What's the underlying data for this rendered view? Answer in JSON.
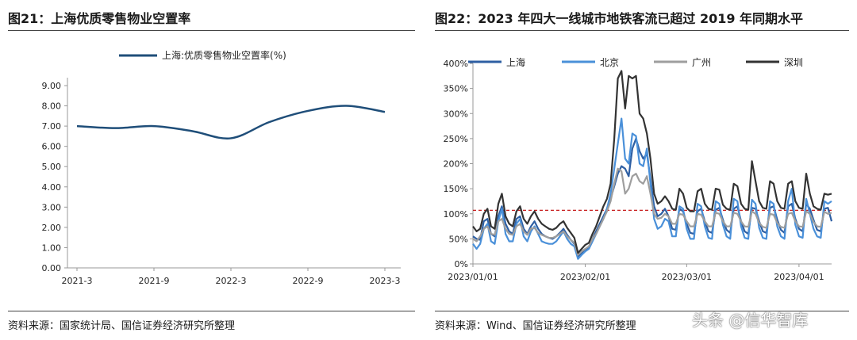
{
  "left": {
    "title": "图21：上海优质零售物业空置率",
    "source": "资料来源：国家统计局、国信证券经济研究所整理"
  },
  "right": {
    "title": "图22：2023 年四大一线城市地铁客流已超过 2019 年同期水平",
    "source": "资料来源：Wind、国信证券经济研究所整理"
  },
  "watermark": "头条 @信华智库",
  "chart_data": [
    {
      "type": "line",
      "title": "",
      "xlabel": "",
      "ylabel": "",
      "x_ticks": [
        "2021-3",
        "2021-9",
        "2022-3",
        "2022-9",
        "2023-3"
      ],
      "y_ticks": [
        "0.00",
        "1.00",
        "2.00",
        "3.00",
        "4.00",
        "5.00",
        "6.00",
        "7.00",
        "8.00",
        "9.00"
      ],
      "ylim": [
        0,
        9
      ],
      "grid": false,
      "legend_position": "top",
      "series": [
        {
          "name": "上海:优质零售物业空置率(%)",
          "color": "#1f4e79",
          "x": [
            "2021-3",
            "2021-6",
            "2021-9",
            "2021-12",
            "2022-3",
            "2022-6",
            "2022-9",
            "2022-12",
            "2023-3"
          ],
          "values": [
            7.0,
            6.9,
            7.0,
            6.75,
            6.4,
            7.2,
            7.75,
            8.0,
            7.7
          ]
        }
      ]
    },
    {
      "type": "line",
      "title": "",
      "xlabel": "",
      "ylabel": "",
      "x_ticks": [
        "2023/01/01",
        "2023/02/01",
        "2023/03/01",
        "2023/04/01"
      ],
      "y_ticks": [
        "0%",
        "50%",
        "100%",
        "150%",
        "200%",
        "250%",
        "300%",
        "350%",
        "400%"
      ],
      "ylim": [
        0,
        400
      ],
      "x_range": [
        "2023/01/01",
        "2023/04/10"
      ],
      "grid": false,
      "legend_position": "top",
      "reference_line": {
        "value": 107,
        "color": "#c00000",
        "style": "dashed"
      },
      "series": [
        {
          "name": "上海",
          "color": "#2e5fa3",
          "values": [
            55,
            50,
            48,
            85,
            90,
            60,
            55,
            95,
            115,
            80,
            65,
            60,
            90,
            95,
            70,
            60,
            75,
            85,
            70,
            60,
            55,
            52,
            50,
            55,
            62,
            70,
            58,
            48,
            40,
            15,
            22,
            28,
            32,
            50,
            65,
            80,
            95,
            110,
            130,
            155,
            180,
            195,
            190,
            175,
            230,
            250,
            225,
            210,
            220,
            170,
            115,
            95,
            100,
            110,
            95,
            70,
            68,
            110,
            105,
            80,
            62,
            60,
            105,
            110,
            85,
            65,
            62,
            108,
            112,
            88,
            68,
            62,
            110,
            115,
            85,
            65,
            60,
            112,
            110,
            85,
            65,
            62,
            112,
            115,
            88,
            68,
            62,
            115,
            120,
            90,
            70,
            65,
            120,
            110,
            88,
            68,
            65,
            110,
            112,
            85
          ]
        },
        {
          "name": "北京",
          "color": "#4a90d9",
          "values": [
            40,
            30,
            40,
            70,
            80,
            45,
            40,
            85,
            110,
            60,
            45,
            45,
            80,
            90,
            55,
            45,
            65,
            75,
            60,
            45,
            42,
            40,
            40,
            45,
            55,
            65,
            50,
            40,
            35,
            10,
            18,
            25,
            30,
            45,
            60,
            75,
            90,
            110,
            140,
            190,
            240,
            290,
            210,
            200,
            260,
            255,
            200,
            195,
            230,
            160,
            90,
            70,
            75,
            90,
            85,
            55,
            55,
            115,
            110,
            70,
            50,
            50,
            120,
            115,
            75,
            52,
            50,
            125,
            120,
            78,
            55,
            50,
            130,
            125,
            75,
            52,
            50,
            128,
            120,
            72,
            52,
            50,
            125,
            120,
            75,
            55,
            50,
            125,
            150,
            78,
            55,
            52,
            130,
            100,
            70,
            55,
            52,
            125,
            120,
            125
          ]
        },
        {
          "name": "广州",
          "color": "#9e9e9e",
          "values": [
            50,
            45,
            55,
            70,
            75,
            60,
            58,
            85,
            90,
            70,
            60,
            58,
            75,
            80,
            65,
            58,
            70,
            72,
            62,
            58,
            55,
            52,
            52,
            55,
            60,
            65,
            55,
            48,
            42,
            18,
            25,
            30,
            35,
            50,
            60,
            75,
            90,
            105,
            125,
            160,
            190,
            185,
            140,
            150,
            175,
            180,
            165,
            160,
            175,
            140,
            100,
            90,
            92,
            100,
            95,
            80,
            80,
            100,
            98,
            85,
            75,
            75,
            100,
            98,
            85,
            75,
            75,
            102,
            100,
            85,
            75,
            75,
            102,
            100,
            85,
            75,
            74,
            105,
            100,
            82,
            74,
            72,
            100,
            98,
            82,
            74,
            72,
            100,
            102,
            85,
            75,
            74,
            105,
            100,
            84,
            75,
            74,
            104,
            100,
            102
          ]
        },
        {
          "name": "深圳",
          "color": "#333333",
          "values": [
            75,
            65,
            70,
            100,
            110,
            75,
            70,
            120,
            140,
            95,
            80,
            75,
            105,
            115,
            90,
            80,
            95,
            105,
            90,
            80,
            75,
            70,
            68,
            72,
            80,
            85,
            72,
            62,
            52,
            22,
            30,
            38,
            42,
            60,
            75,
            95,
            115,
            130,
            160,
            250,
            370,
            385,
            310,
            375,
            370,
            375,
            300,
            290,
            260,
            210,
            140,
            120,
            125,
            135,
            125,
            110,
            108,
            150,
            140,
            112,
            105,
            105,
            145,
            150,
            120,
            110,
            108,
            150,
            148,
            118,
            110,
            108,
            160,
            155,
            120,
            110,
            108,
            205,
            165,
            125,
            112,
            110,
            165,
            160,
            125,
            112,
            110,
            160,
            165,
            125,
            112,
            110,
            180,
            140,
            115,
            110,
            108,
            140,
            138,
            140
          ]
        }
      ]
    }
  ]
}
